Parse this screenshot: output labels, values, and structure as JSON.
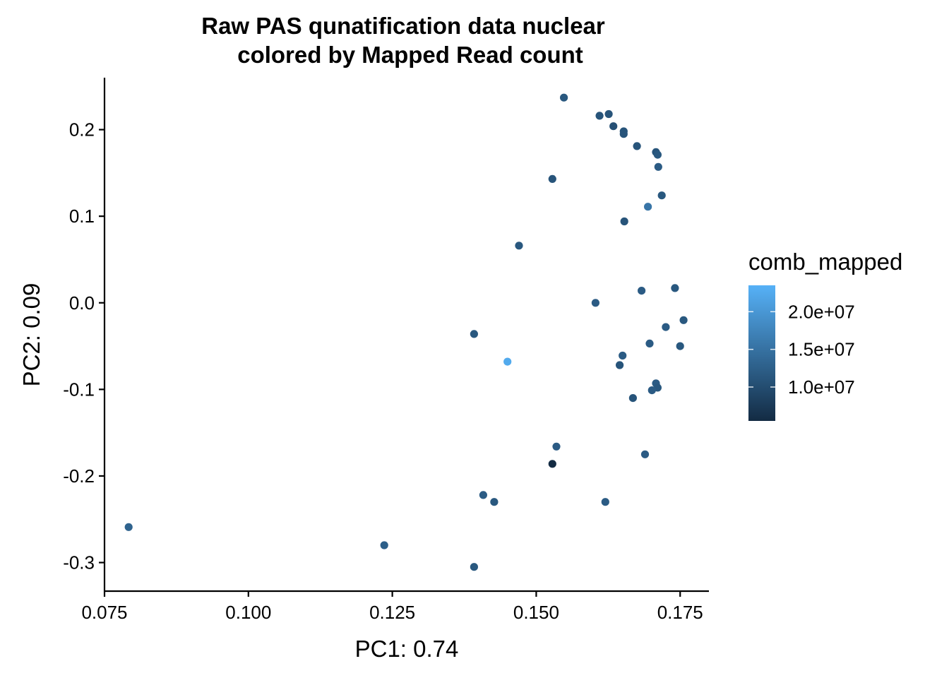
{
  "chart_data": {
    "type": "scatter",
    "title": "Raw PAS qunatification data nuclear",
    "subtitle": "colored by Mapped Read count",
    "xlabel": "PC1: 0.74",
    "ylabel": "PC2: 0.09",
    "xlim": [
      0.075,
      0.18
    ],
    "ylim": [
      -0.333,
      0.26
    ],
    "xticks": [
      "0.075",
      "0.100",
      "0.125",
      "0.150",
      "0.175"
    ],
    "yticks": [
      "-0.3",
      "-0.2",
      "-0.1",
      "0.0",
      "0.1",
      "0.2"
    ],
    "grid": false,
    "legend": {
      "title": "comb_mapped",
      "placement": "right",
      "type": "colorbar",
      "range": [
        5500000,
        23500000
      ],
      "breaks": [
        10000000,
        15000000,
        20000000
      ],
      "labels": [
        "1.0e+07",
        "1.5e+07",
        "2.0e+07"
      ],
      "low_color": "#132B43",
      "high_color": "#56B1F7"
    },
    "points": [
      {
        "x": 0.1548,
        "y": 0.237,
        "c": 11500000
      },
      {
        "x": 0.161,
        "y": 0.216,
        "c": 11000000
      },
      {
        "x": 0.1626,
        "y": 0.218,
        "c": 11000000
      },
      {
        "x": 0.1634,
        "y": 0.204,
        "c": 10500000
      },
      {
        "x": 0.1652,
        "y": 0.198,
        "c": 11000000
      },
      {
        "x": 0.1652,
        "y": 0.195,
        "c": 11000000
      },
      {
        "x": 0.1675,
        "y": 0.181,
        "c": 11000000
      },
      {
        "x": 0.1708,
        "y": 0.174,
        "c": 11000000
      },
      {
        "x": 0.1711,
        "y": 0.171,
        "c": 11500000
      },
      {
        "x": 0.1712,
        "y": 0.157,
        "c": 12000000
      },
      {
        "x": 0.1528,
        "y": 0.143,
        "c": 11000000
      },
      {
        "x": 0.1718,
        "y": 0.124,
        "c": 11500000
      },
      {
        "x": 0.1694,
        "y": 0.111,
        "c": 15500000
      },
      {
        "x": 0.1653,
        "y": 0.094,
        "c": 11000000
      },
      {
        "x": 0.147,
        "y": 0.066,
        "c": 11500000
      },
      {
        "x": 0.1741,
        "y": 0.017,
        "c": 11500000
      },
      {
        "x": 0.1683,
        "y": 0.014,
        "c": 12000000
      },
      {
        "x": 0.1603,
        "y": -0.0,
        "c": 12000000
      },
      {
        "x": 0.1756,
        "y": -0.02,
        "c": 11500000
      },
      {
        "x": 0.1725,
        "y": -0.028,
        "c": 12000000
      },
      {
        "x": 0.1392,
        "y": -0.036,
        "c": 11500000
      },
      {
        "x": 0.1697,
        "y": -0.047,
        "c": 12000000
      },
      {
        "x": 0.175,
        "y": -0.05,
        "c": 11500000
      },
      {
        "x": 0.165,
        "y": -0.061,
        "c": 12000000
      },
      {
        "x": 0.145,
        "y": -0.068,
        "c": 22500000
      },
      {
        "x": 0.1645,
        "y": -0.072,
        "c": 11000000
      },
      {
        "x": 0.1708,
        "y": -0.093,
        "c": 12000000
      },
      {
        "x": 0.1711,
        "y": -0.098,
        "c": 11500000
      },
      {
        "x": 0.1701,
        "y": -0.101,
        "c": 12000000
      },
      {
        "x": 0.1668,
        "y": -0.11,
        "c": 11000000
      },
      {
        "x": 0.1535,
        "y": -0.166,
        "c": 12000000
      },
      {
        "x": 0.1689,
        "y": -0.175,
        "c": 12000000
      },
      {
        "x": 0.1528,
        "y": -0.186,
        "c": 5500000
      },
      {
        "x": 0.1408,
        "y": -0.222,
        "c": 12000000
      },
      {
        "x": 0.1427,
        "y": -0.23,
        "c": 11500000
      },
      {
        "x": 0.162,
        "y": -0.23,
        "c": 12000000
      },
      {
        "x": 0.0792,
        "y": -0.259,
        "c": 13000000
      },
      {
        "x": 0.1236,
        "y": -0.28,
        "c": 12500000
      },
      {
        "x": 0.1392,
        "y": -0.305,
        "c": 11500000
      }
    ]
  }
}
